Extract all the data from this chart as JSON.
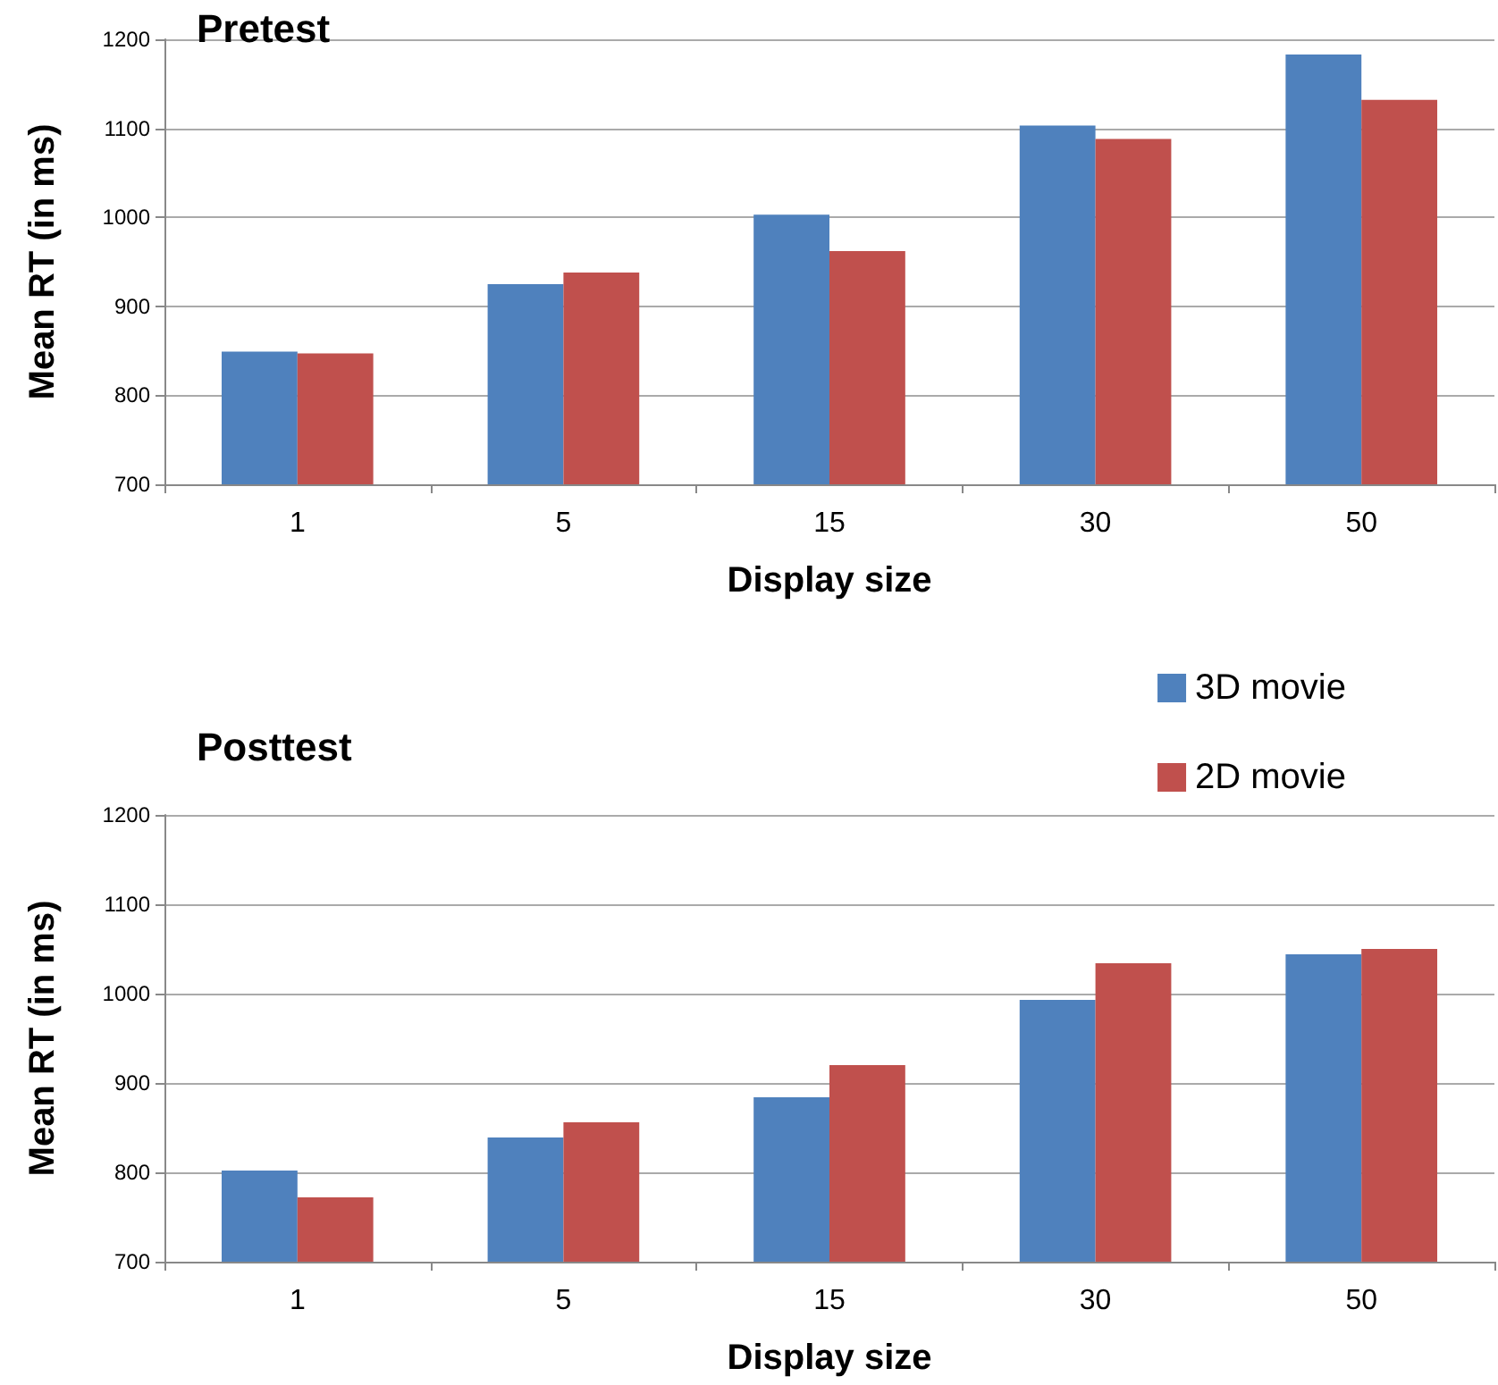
{
  "chart_data": [
    {
      "type": "bar",
      "title": "Pretest",
      "xlabel": "Display size",
      "ylabel": "Mean RT (in ms)",
      "categories": [
        "1",
        "5",
        "15",
        "30",
        "50"
      ],
      "series": [
        {
          "color": "#4f81bd",
          "values": [
            849,
            925,
            1003,
            1103,
            1183
          ]
        },
        {
          "color": "#c0504d",
          "values": [
            847,
            938,
            962,
            1088,
            1132
          ]
        }
      ],
      "ylim": [
        700,
        1200
      ],
      "yticks": [
        700,
        800,
        900,
        1000,
        1100,
        1200
      ],
      "grid": "y",
      "legend": false
    },
    {
      "type": "bar",
      "title": "Posttest",
      "xlabel": "Display size",
      "ylabel": "Mean RT (in ms)",
      "categories": [
        "1",
        "5",
        "15",
        "30",
        "50"
      ],
      "series": [
        {
          "name": "3D movie",
          "color": "#4f81bd",
          "values": [
            802,
            839,
            884,
            993,
            1044
          ]
        },
        {
          "name": "2D movie",
          "color": "#c0504d",
          "values": [
            772,
            856,
            920,
            1034,
            1050
          ]
        }
      ],
      "ylim": [
        700,
        1200
      ],
      "yticks": [
        700,
        800,
        900,
        1000,
        1100,
        1200
      ],
      "grid": "y",
      "legend": "top right"
    }
  ]
}
